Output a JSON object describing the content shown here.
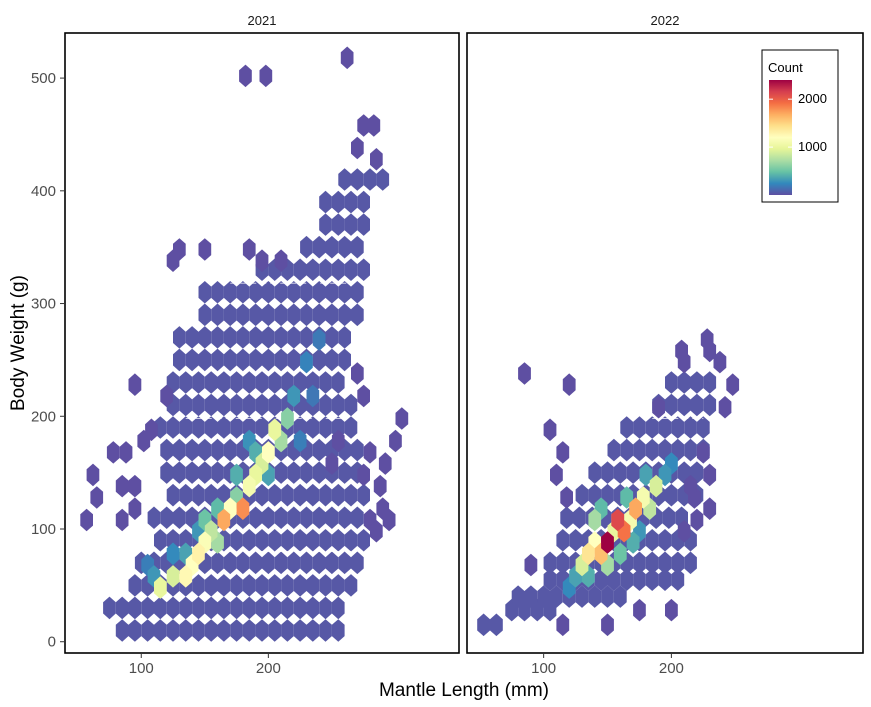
{
  "chart_data": {
    "type": "heatmap",
    "subtype": "hexbin",
    "xlabel": "Mantle Length (mm)",
    "ylabel": "Body Weight (g)",
    "xlim": [
      40,
      350
    ],
    "ylim": [
      -10,
      540
    ],
    "x_ticks": [
      100,
      200
    ],
    "y_ticks": [
      0,
      100,
      200,
      300,
      400,
      500
    ],
    "legend": {
      "title": "Count",
      "ticks": [
        1000,
        2000
      ],
      "range": [
        1,
        2400
      ],
      "colors": [
        "#5E4FA2",
        "#3288BD",
        "#66C2A5",
        "#ABDDA4",
        "#E6F598",
        "#FFFFBF",
        "#FEE08B",
        "#FDAE61",
        "#F46D43",
        "#D53E4F",
        "#9E0142"
      ],
      "placement": "top-right"
    },
    "panels": [
      {
        "label": "2021",
        "core": [
          {
            "x": 105,
            "y": 68,
            "count": 200
          },
          {
            "x": 115,
            "y": 48,
            "count": 1000
          },
          {
            "x": 125,
            "y": 58,
            "count": 900
          },
          {
            "x": 135,
            "y": 58,
            "count": 1250
          },
          {
            "x": 140,
            "y": 68,
            "count": 1200
          },
          {
            "x": 145,
            "y": 78,
            "count": 1300
          },
          {
            "x": 150,
            "y": 88,
            "count": 1150
          },
          {
            "x": 155,
            "y": 98,
            "count": 800
          },
          {
            "x": 160,
            "y": 88,
            "count": 700
          },
          {
            "x": 165,
            "y": 108,
            "count": 1700
          },
          {
            "x": 170,
            "y": 118,
            "count": 1200
          },
          {
            "x": 175,
            "y": 128,
            "count": 600
          },
          {
            "x": 180,
            "y": 118,
            "count": 1800
          },
          {
            "x": 185,
            "y": 138,
            "count": 1100
          },
          {
            "x": 190,
            "y": 148,
            "count": 1000
          },
          {
            "x": 195,
            "y": 158,
            "count": 900
          },
          {
            "x": 200,
            "y": 168,
            "count": 1200
          },
          {
            "x": 205,
            "y": 188,
            "count": 1000
          },
          {
            "x": 210,
            "y": 178,
            "count": 700
          },
          {
            "x": 215,
            "y": 198,
            "count": 600
          },
          {
            "x": 150,
            "y": 108,
            "count": 500
          },
          {
            "x": 160,
            "y": 118,
            "count": 450
          },
          {
            "x": 175,
            "y": 148,
            "count": 400
          },
          {
            "x": 190,
            "y": 168,
            "count": 400
          },
          {
            "x": 200,
            "y": 148,
            "count": 350
          },
          {
            "x": 220,
            "y": 218,
            "count": 300
          },
          {
            "x": 135,
            "y": 78,
            "count": 350
          },
          {
            "x": 125,
            "y": 78,
            "count": 250
          },
          {
            "x": 110,
            "y": 58,
            "count": 300
          },
          {
            "x": 230,
            "y": 248,
            "count": 220
          },
          {
            "x": 225,
            "y": 178,
            "count": 200
          },
          {
            "x": 240,
            "y": 268,
            "count": 180
          },
          {
            "x": 235,
            "y": 218,
            "count": 170
          },
          {
            "x": 145,
            "y": 98,
            "count": 300
          },
          {
            "x": 185,
            "y": 178,
            "count": 280
          }
        ],
        "background_region": [
          {
            "x_min": 80,
            "x_max": 255,
            "y": 10
          },
          {
            "x_min": 75,
            "x_max": 255,
            "y": 30
          },
          {
            "x_min": 90,
            "x_max": 265,
            "y": 50
          },
          {
            "x_min": 100,
            "x_max": 270,
            "y": 70
          },
          {
            "x_min": 110,
            "x_max": 270,
            "y": 90
          },
          {
            "x_min": 110,
            "x_max": 270,
            "y": 110
          },
          {
            "x_min": 120,
            "x_max": 270,
            "y": 130
          },
          {
            "x_min": 120,
            "x_max": 270,
            "y": 150
          },
          {
            "x_min": 115,
            "x_max": 270,
            "y": 170
          },
          {
            "x_min": 115,
            "x_max": 265,
            "y": 190
          },
          {
            "x_min": 120,
            "x_max": 265,
            "y": 210
          },
          {
            "x_min": 125,
            "x_max": 260,
            "y": 230
          },
          {
            "x_min": 125,
            "x_max": 260,
            "y": 250
          },
          {
            "x_min": 130,
            "x_max": 260,
            "y": 270
          },
          {
            "x_min": 145,
            "x_max": 265,
            "y": 290
          },
          {
            "x_min": 150,
            "x_max": 270,
            "y": 310
          },
          {
            "x_min": 190,
            "x_max": 270,
            "y": 330
          },
          {
            "x_min": 230,
            "x_max": 270,
            "y": 350
          },
          {
            "x_min": 240,
            "x_max": 275,
            "y": 370
          },
          {
            "x_min": 245,
            "x_max": 280,
            "y": 390
          },
          {
            "x_min": 255,
            "x_max": 285,
            "y": 410
          }
        ],
        "outliers": [
          {
            "x": 182,
            "y": 502
          },
          {
            "x": 198,
            "y": 502
          },
          {
            "x": 262,
            "y": 518
          },
          {
            "x": 275,
            "y": 458
          },
          {
            "x": 283,
            "y": 458
          },
          {
            "x": 270,
            "y": 438
          },
          {
            "x": 285,
            "y": 428
          },
          {
            "x": 130,
            "y": 348
          },
          {
            "x": 150,
            "y": 348
          },
          {
            "x": 125,
            "y": 338
          },
          {
            "x": 195,
            "y": 338
          },
          {
            "x": 185,
            "y": 348
          },
          {
            "x": 210,
            "y": 338
          },
          {
            "x": 95,
            "y": 228
          },
          {
            "x": 120,
            "y": 218
          },
          {
            "x": 62,
            "y": 148
          },
          {
            "x": 57,
            "y": 108
          },
          {
            "x": 65,
            "y": 128
          },
          {
            "x": 88,
            "y": 168
          },
          {
            "x": 78,
            "y": 168
          },
          {
            "x": 85,
            "y": 138
          },
          {
            "x": 95,
            "y": 138
          },
          {
            "x": 85,
            "y": 108
          },
          {
            "x": 95,
            "y": 118
          },
          {
            "x": 102,
            "y": 178
          },
          {
            "x": 108,
            "y": 188
          },
          {
            "x": 288,
            "y": 138
          },
          {
            "x": 292,
            "y": 158
          },
          {
            "x": 300,
            "y": 178
          },
          {
            "x": 305,
            "y": 198
          },
          {
            "x": 290,
            "y": 118
          },
          {
            "x": 295,
            "y": 108
          },
          {
            "x": 270,
            "y": 238
          },
          {
            "x": 275,
            "y": 218
          },
          {
            "x": 280,
            "y": 168
          },
          {
            "x": 275,
            "y": 148
          },
          {
            "x": 280,
            "y": 108
          },
          {
            "x": 285,
            "y": 98
          },
          {
            "x": 250,
            "y": 158
          },
          {
            "x": 255,
            "y": 178
          }
        ],
        "dash_lines_y": [
          80,
          198,
          318
        ]
      },
      {
        "label": "2022",
        "core": [
          {
            "x": 130,
            "y": 68,
            "count": 900
          },
          {
            "x": 135,
            "y": 78,
            "count": 1400
          },
          {
            "x": 140,
            "y": 88,
            "count": 1200
          },
          {
            "x": 145,
            "y": 78,
            "count": 1600
          },
          {
            "x": 150,
            "y": 88,
            "count": 2400
          },
          {
            "x": 155,
            "y": 98,
            "count": 1000
          },
          {
            "x": 158,
            "y": 108,
            "count": 2100
          },
          {
            "x": 163,
            "y": 98,
            "count": 1900
          },
          {
            "x": 168,
            "y": 108,
            "count": 1100
          },
          {
            "x": 172,
            "y": 118,
            "count": 1700
          },
          {
            "x": 178,
            "y": 128,
            "count": 1100
          },
          {
            "x": 183,
            "y": 118,
            "count": 800
          },
          {
            "x": 188,
            "y": 138,
            "count": 900
          },
          {
            "x": 140,
            "y": 108,
            "count": 700
          },
          {
            "x": 145,
            "y": 118,
            "count": 450
          },
          {
            "x": 165,
            "y": 128,
            "count": 450
          },
          {
            "x": 180,
            "y": 148,
            "count": 350
          },
          {
            "x": 150,
            "y": 68,
            "count": 700
          },
          {
            "x": 125,
            "y": 58,
            "count": 350
          },
          {
            "x": 135,
            "y": 58,
            "count": 400
          },
          {
            "x": 120,
            "y": 48,
            "count": 250
          },
          {
            "x": 160,
            "y": 78,
            "count": 500
          },
          {
            "x": 170,
            "y": 88,
            "count": 400
          },
          {
            "x": 195,
            "y": 148,
            "count": 300
          },
          {
            "x": 175,
            "y": 98,
            "count": 300
          },
          {
            "x": 200,
            "y": 158,
            "count": 250
          }
        ],
        "background_region": [
          {
            "x_min": 48,
            "x_max": 60,
            "y": 15
          },
          {
            "x_min": 70,
            "x_max": 100,
            "y": 28
          },
          {
            "x_min": 80,
            "x_max": 160,
            "y": 40
          },
          {
            "x_min": 100,
            "x_max": 200,
            "y": 55
          },
          {
            "x_min": 105,
            "x_max": 215,
            "y": 70
          },
          {
            "x_min": 110,
            "x_max": 215,
            "y": 90
          },
          {
            "x_min": 118,
            "x_max": 210,
            "y": 110
          },
          {
            "x_min": 125,
            "x_max": 215,
            "y": 130
          },
          {
            "x_min": 140,
            "x_max": 220,
            "y": 150
          },
          {
            "x_min": 150,
            "x_max": 225,
            "y": 170
          },
          {
            "x_min": 165,
            "x_max": 230,
            "y": 190
          },
          {
            "x_min": 185,
            "x_max": 230,
            "y": 210
          },
          {
            "x_min": 200,
            "x_max": 235,
            "y": 230
          }
        ],
        "outliers": [
          {
            "x": 85,
            "y": 238
          },
          {
            "x": 115,
            "y": 168
          },
          {
            "x": 110,
            "y": 148
          },
          {
            "x": 118,
            "y": 128
          },
          {
            "x": 90,
            "y": 68
          },
          {
            "x": 115,
            "y": 15
          },
          {
            "x": 150,
            "y": 15
          },
          {
            "x": 175,
            "y": 28
          },
          {
            "x": 210,
            "y": 98
          },
          {
            "x": 220,
            "y": 108
          },
          {
            "x": 230,
            "y": 118
          },
          {
            "x": 230,
            "y": 148
          },
          {
            "x": 218,
            "y": 128
          },
          {
            "x": 215,
            "y": 138
          },
          {
            "x": 225,
            "y": 168
          },
          {
            "x": 208,
            "y": 258
          },
          {
            "x": 228,
            "y": 268
          },
          {
            "x": 238,
            "y": 248
          },
          {
            "x": 248,
            "y": 228
          },
          {
            "x": 230,
            "y": 258
          },
          {
            "x": 210,
            "y": 248
          },
          {
            "x": 242,
            "y": 208
          },
          {
            "x": 120,
            "y": 228
          },
          {
            "x": 105,
            "y": 188
          },
          {
            "x": 190,
            "y": 208
          },
          {
            "x": 200,
            "y": 28
          }
        ],
        "dash_lines_y": [
          80,
          198
        ]
      }
    ]
  }
}
